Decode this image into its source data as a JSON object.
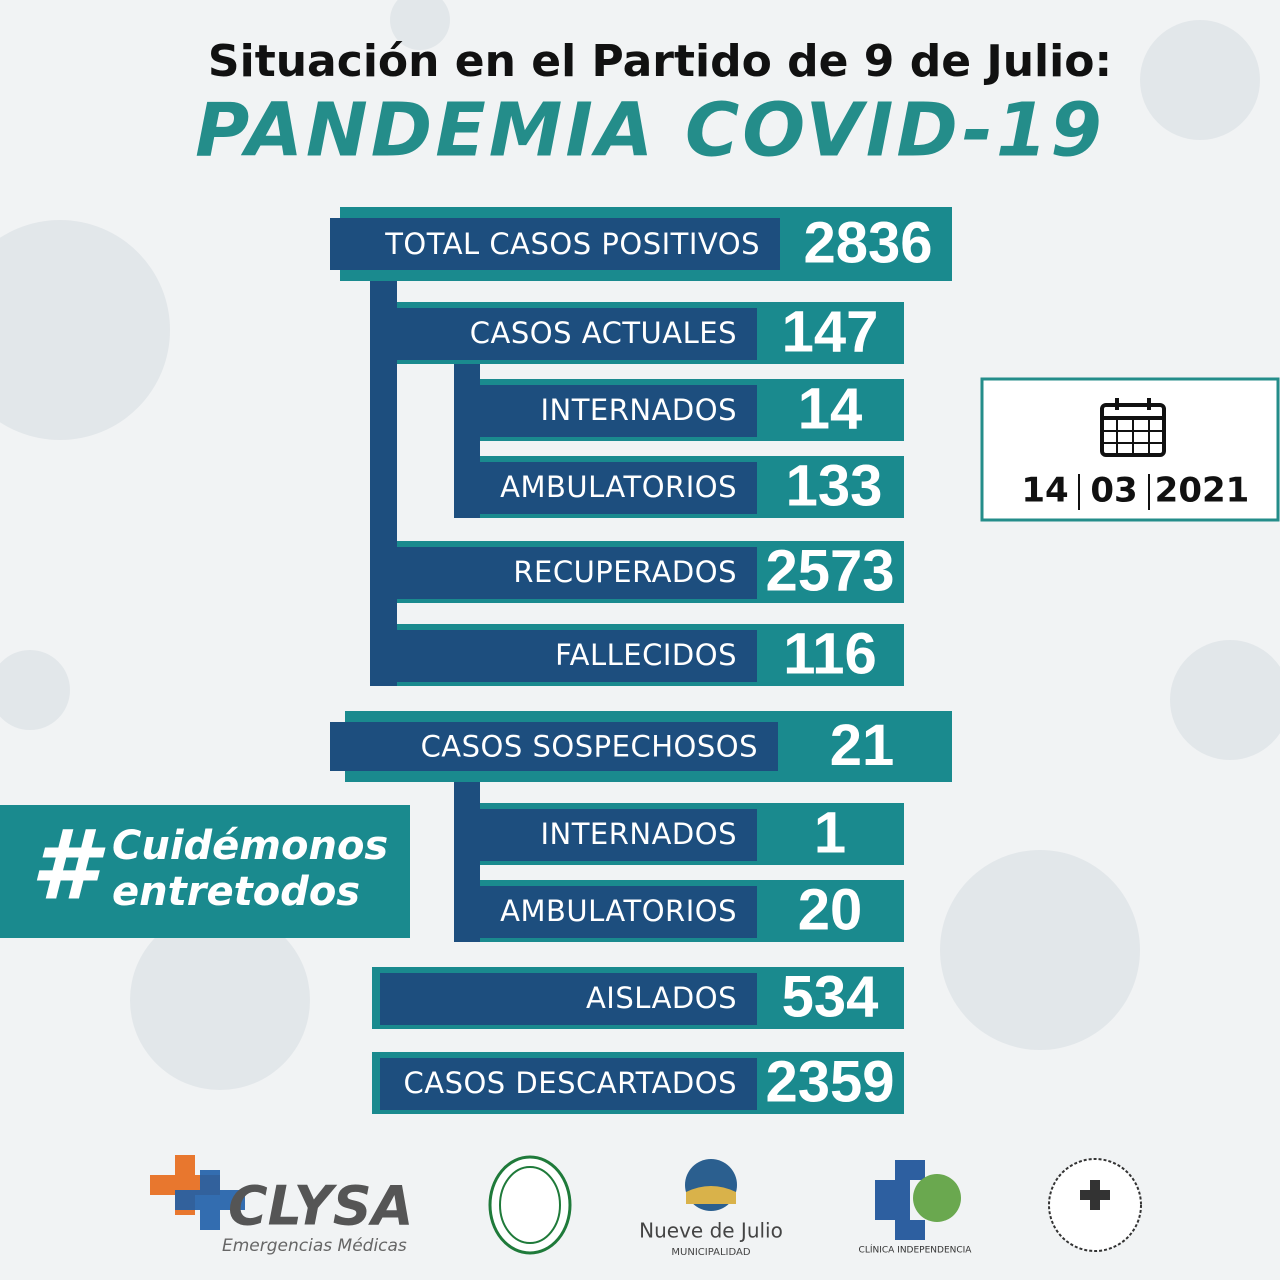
{
  "header": {
    "line1": "Situación en el Partido de 9 de Julio:",
    "title": "PANDEMIA COVID-19"
  },
  "rows": [
    {
      "label": "TOTAL CASOS POSITIVOS",
      "value": 2836
    },
    {
      "label": "CASOS ACTUALES",
      "value": 147
    },
    {
      "label": "INTERNADOS",
      "value": 14
    },
    {
      "label": "AMBULATORIOS",
      "value": 133
    },
    {
      "label": "RECUPERADOS",
      "value": 2573
    },
    {
      "label": "FALLECIDOS",
      "value": 116
    },
    {
      "label": "CASOS SOSPECHOSOS",
      "value": 21
    },
    {
      "label": "INTERNADOS",
      "value": 1
    },
    {
      "label": "AMBULATORIOS",
      "value": 20
    },
    {
      "label": "AISLADOS",
      "value": 534
    },
    {
      "label": "CASOS DESCARTADOS",
      "value": 2359
    }
  ],
  "date": {
    "day": "14",
    "month": "03",
    "year": "2021"
  },
  "hashtag": {
    "symbol": "#",
    "line1": "Cuidémonos",
    "line2": "entretodos"
  },
  "logos": {
    "clysa": "CLYSA",
    "clysa_sub": "Emergencias Médicas",
    "municipio": "Nueve de Julio",
    "municipio_sub": "MUNICIPALIDAD",
    "clinica": "CLÍNICA INDEPENDENCIA"
  }
}
